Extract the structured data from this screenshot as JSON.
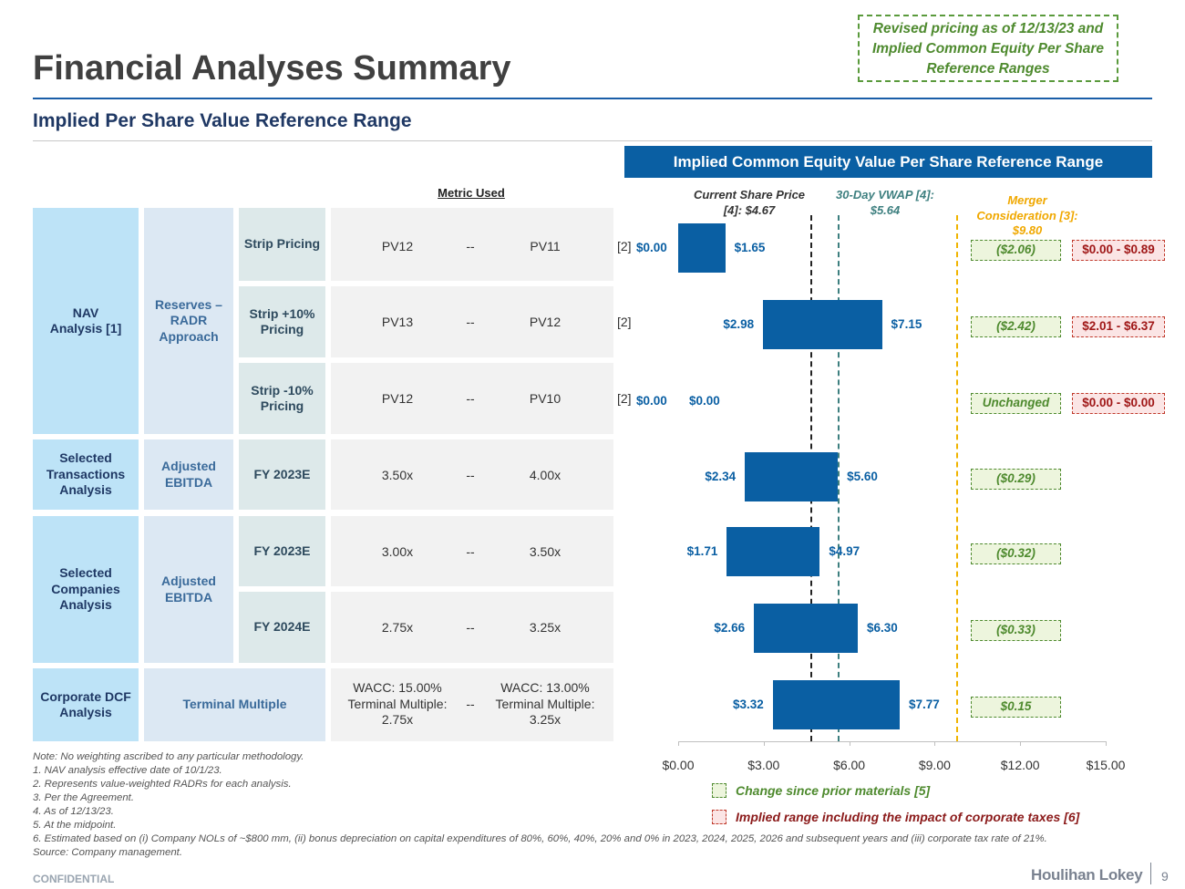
{
  "header": {
    "title": "Financial Analyses Summary",
    "subtitle": "Implied Per Share Value Reference Range",
    "revised_note": "Revised pricing as of 12/13/23 and Implied Common Equity Per Share Reference Ranges"
  },
  "banner": "Implied Common Equity Value Per Share Reference Range",
  "table": {
    "metric_used_header": "Metric Used",
    "groups": {
      "nav": "NAV Analysis [1]",
      "reserves": "Reserves – RADR Approach",
      "transactions": "Selected Transactions Analysis",
      "transactions_metric": "Adjusted EBITDA",
      "companies": "Selected Companies Analysis",
      "companies_metric": "Adjusted EBITDA",
      "dcf": "Corporate DCF Analysis",
      "dcf_metric": "Terminal Multiple"
    },
    "rows": [
      {
        "basis": "Strip Pricing",
        "low": "PV12",
        "sep": "--",
        "high": "PV11",
        "note": "[2]"
      },
      {
        "basis": "Strip +10% Pricing",
        "low": "PV13",
        "sep": "--",
        "high": "PV12",
        "note": "[2]"
      },
      {
        "basis": "Strip -10% Pricing",
        "low": "PV12",
        "sep": "--",
        "high": "PV10",
        "note": "[2]"
      },
      {
        "basis": "FY 2023E",
        "low": "3.50x",
        "sep": "--",
        "high": "4.00x",
        "note": ""
      },
      {
        "basis": "FY 2023E",
        "low": "3.00x",
        "sep": "--",
        "high": "3.50x",
        "note": ""
      },
      {
        "basis": "FY 2024E",
        "low": "2.75x",
        "sep": "--",
        "high": "3.25x",
        "note": ""
      },
      {
        "basis": "",
        "low": "WACC: 15.00% Terminal Multiple: 2.75x",
        "sep": "--",
        "high": "WACC: 13.00% Terminal Multiple: 3.25x",
        "note": ""
      }
    ]
  },
  "chart_data": {
    "type": "bar",
    "orientation": "horizontal-floating",
    "title": "Implied Common Equity Value Per Share Reference Range",
    "xlim": [
      0,
      15
    ],
    "xticks": [
      "$0.00",
      "$3.00",
      "$6.00",
      "$9.00",
      "$12.00",
      "$15.00"
    ],
    "ranges": [
      {
        "low": 0.0,
        "high": 1.65,
        "low_label": "$0.00",
        "high_label": "$1.65"
      },
      {
        "low": 2.98,
        "high": 7.15,
        "low_label": "$2.98",
        "high_label": "$7.15"
      },
      {
        "low": 0.0,
        "high": 0.0,
        "low_label": "$0.00",
        "high_label": "$0.00"
      },
      {
        "low": 2.34,
        "high": 5.6,
        "low_label": "$2.34",
        "high_label": "$5.60"
      },
      {
        "low": 1.71,
        "high": 4.97,
        "low_label": "$1.71",
        "high_label": "$4.97"
      },
      {
        "low": 2.66,
        "high": 6.3,
        "low_label": "$2.66",
        "high_label": "$6.30"
      },
      {
        "low": 3.32,
        "high": 7.77,
        "low_label": "$3.32",
        "high_label": "$7.77"
      }
    ],
    "reference_lines": [
      {
        "name": "current-price",
        "value": 4.67,
        "label": "Current Share Price [4]: $4.67",
        "color": "#222222"
      },
      {
        "name": "vwap",
        "value": 5.64,
        "label": "30-Day VWAP [4]: $5.64",
        "color": "#3d7f7f"
      },
      {
        "name": "merger",
        "value": 9.8,
        "label": "Merger Consideration [3]: $9.80",
        "color": "#f0b400"
      }
    ],
    "changes": [
      "($2.06)",
      "($2.42)",
      "Unchanged",
      "($0.29)",
      "($0.32)",
      "($0.33)",
      "$0.15"
    ],
    "tax_ranges": [
      "$0.00 - $0.89",
      "$2.01 - $6.37",
      "$0.00 - $0.00",
      null,
      null,
      null,
      null
    ]
  },
  "legend": {
    "change": "Change since prior materials [5]",
    "tax": "Implied range including the impact of corporate taxes [6]"
  },
  "footnotes": [
    "Note: No weighting ascribed to any particular methodology.",
    "1. NAV analysis effective date of 10/1/23.",
    "2. Represents value-weighted RADRs for each analysis.",
    "3. Per the Agreement.",
    "4. As of 12/13/23.",
    "5. At the midpoint.",
    "6. Estimated based on (i) Company NOLs of ~$800 mm, (ii) bonus depreciation on capital expenditures of 80%, 60%, 40%, 20% and 0% in 2023, 2024, 2025, 2026 and subsequent years and (iii) corporate tax rate of 21%.",
    "Source: Company management."
  ],
  "footer": {
    "confidential": "CONFIDENTIAL",
    "logo": "Houlihan Lokey",
    "page": "9"
  },
  "colors": {
    "bar": "#0a5fa3",
    "banner": "#0a5fa3",
    "change_green": "#4e8a2e",
    "tax_red": "#c0392b"
  }
}
